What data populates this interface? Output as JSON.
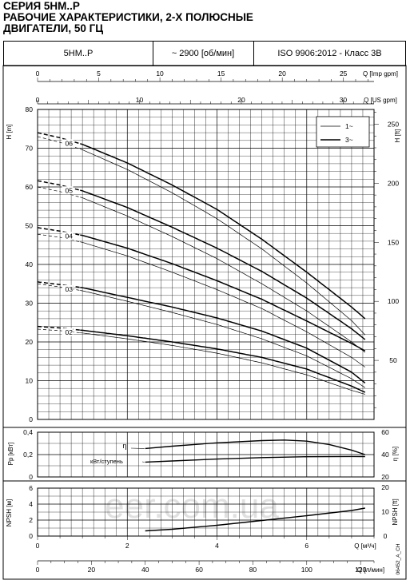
{
  "header": {
    "title_lines": [
      "СЕРИЯ 5НМ..Р",
      "РАБОЧИЕ ХАРАКТЕРИСТИКИ, 2-Х ПОЛЮСНЫЕ",
      "ДВИГАТЕЛИ, 50 ГЦ"
    ],
    "model": "5HM..P",
    "speed": "~ 2900 [об/мин]",
    "standard": "ISO 9906:2012 - Класс 3В"
  },
  "watermark": "eer.com.ua",
  "doc_code": "06452_A_CH",
  "chart_data": [
    {
      "type": "line",
      "name": "head",
      "ylabel": "H [m]",
      "ylabel_right": "H [ft]",
      "xlabel_top1": "Q [Imp gpm]",
      "xlabel_top2": "Q [US gpm]",
      "ylim": [
        0,
        80
      ],
      "xlim": [
        0,
        7.5
      ],
      "yticks": [
        "0",
        "10",
        "20",
        "30",
        "40",
        "50",
        "60",
        "70",
        "80"
      ],
      "ft_ticks": [
        "50",
        "100",
        "150",
        "200",
        "250"
      ],
      "imp_ticks": [
        "0",
        "5",
        "10",
        "15",
        "20",
        "25"
      ],
      "us_ticks": [
        "0",
        "10",
        "20",
        "30"
      ],
      "legend": {
        "placement": "top-right",
        "items": [
          "1~",
          "3~"
        ]
      },
      "series": [
        {
          "label": "02",
          "x": [
            0,
            0.5,
            1,
            2,
            3,
            4,
            5,
            6,
            7,
            7.3
          ],
          "y_3ph": [
            24,
            23.6,
            23,
            21.6,
            20,
            18.2,
            16,
            13,
            8.6,
            7
          ],
          "y_1ph": [
            23.3,
            22.9,
            22.3,
            20.8,
            19.1,
            17.1,
            14.6,
            11.5,
            7.5,
            6.5
          ]
        },
        {
          "label": "03",
          "x": [
            0,
            0.5,
            1,
            2,
            3,
            4,
            5,
            6,
            7,
            7.3
          ],
          "y_3ph": [
            35.5,
            34.8,
            34,
            31.5,
            29,
            26.2,
            22.8,
            18.4,
            12.2,
            9.4
          ],
          "y_1ph": [
            35,
            34.2,
            33.2,
            30.5,
            27.6,
            24.5,
            20.8,
            16.4,
            10.5,
            8.2
          ]
        },
        {
          "label": "04",
          "x": [
            0,
            0.5,
            1,
            2,
            3,
            4,
            5,
            6,
            7,
            7.3
          ],
          "y_3ph": [
            49.5,
            48.6,
            47.5,
            44.2,
            40.2,
            35.8,
            31,
            25.4,
            19.6,
            17.7
          ],
          "y_1ph": [
            47.8,
            47,
            45.7,
            42.2,
            38,
            33.5,
            28.6,
            22.6,
            16,
            13.5
          ]
        },
        {
          "label": "05",
          "x": [
            0,
            0.5,
            1,
            2,
            3,
            4,
            5,
            6,
            7,
            7.3
          ],
          "y_3ph": [
            61.6,
            60.5,
            59,
            54.7,
            49.6,
            44.2,
            38.2,
            31.3,
            23.4,
            20.6
          ],
          "y_1ph": [
            60,
            58.8,
            57.2,
            52.5,
            47.2,
            41.5,
            35,
            28,
            20,
            17.3
          ]
        },
        {
          "label": "06",
          "x": [
            0,
            0.5,
            1,
            2,
            3,
            4,
            5,
            6,
            7,
            7.3
          ],
          "y_3ph": [
            74,
            72.7,
            71,
            66.2,
            60.5,
            54.2,
            46.5,
            38,
            29,
            26
          ],
          "y_1ph": [
            73,
            71.5,
            69.6,
            64.5,
            58.5,
            51.8,
            44,
            35.2,
            25.5,
            21.8
          ]
        }
      ]
    },
    {
      "type": "line",
      "name": "power-efficiency",
      "ylabel": "Pp [кВт]",
      "ylabel_right": "η [%]",
      "ylim": [
        0,
        0.4
      ],
      "yticks": [
        "0",
        "0,2",
        "0,4"
      ],
      "eta_ticks": [
        "20",
        "40",
        "60"
      ],
      "series": [
        {
          "name": "η",
          "x": [
            2.4,
            3,
            4,
            5,
            5.5,
            6,
            6.5,
            7,
            7.3
          ],
          "y": [
            0.254,
            0.275,
            0.305,
            0.325,
            0.33,
            0.32,
            0.29,
            0.24,
            0.2
          ]
        },
        {
          "name": "кВт/ступень",
          "x": [
            2.4,
            3,
            4,
            5,
            6,
            7,
            7.3
          ],
          "y": [
            0.133,
            0.143,
            0.16,
            0.173,
            0.181,
            0.183,
            0.182
          ]
        }
      ]
    },
    {
      "type": "line",
      "name": "npsh",
      "ylabel": "NPSH [м]",
      "ylabel_right": "NPSH [ft]",
      "xlabel": "Q [м³/ч]",
      "xlabel2": "Q [л/мин]",
      "ylim": [
        0,
        6
      ],
      "yticks": [
        "0",
        "2",
        "4",
        "6"
      ],
      "ft_ticks": [
        "0",
        "10",
        "20"
      ],
      "x_m3h_ticks": [
        "0",
        "2",
        "4",
        "6"
      ],
      "x_lmin_ticks": [
        "0",
        "20",
        "40",
        "60",
        "80",
        "100",
        "120"
      ],
      "series": [
        {
          "name": "NPSH",
          "x": [
            2.4,
            3,
            4,
            5,
            6,
            7,
            7.3
          ],
          "y": [
            0.65,
            0.85,
            1.35,
            1.95,
            2.55,
            3.2,
            3.5
          ]
        }
      ]
    }
  ]
}
